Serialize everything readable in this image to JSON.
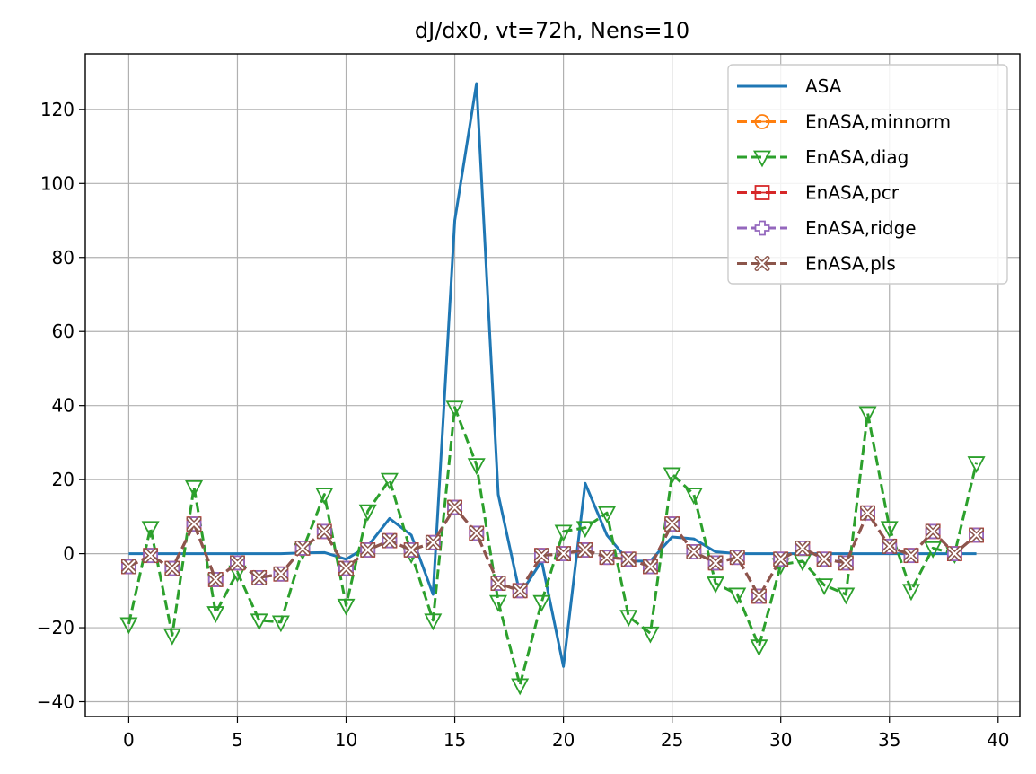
{
  "chart_data": {
    "type": "line",
    "title": "dJ/dx0, vt=72h, Nens=10",
    "xlabel": "",
    "ylabel": "",
    "xlim": [
      -2,
      41
    ],
    "ylim": [
      -44,
      135
    ],
    "xticks": [
      0,
      5,
      10,
      15,
      20,
      25,
      30,
      35,
      40
    ],
    "yticks": [
      -40,
      -20,
      0,
      20,
      40,
      60,
      80,
      100,
      120
    ],
    "xtick_labels": [
      "0",
      "5",
      "10",
      "15",
      "20",
      "25",
      "30",
      "35",
      "40"
    ],
    "ytick_labels": [
      "−40",
      "−20",
      "0",
      "20",
      "40",
      "60",
      "80",
      "100",
      "120"
    ],
    "grid": true,
    "legend_position": "top-right",
    "x": [
      0,
      1,
      2,
      3,
      4,
      5,
      6,
      7,
      8,
      9,
      10,
      11,
      12,
      13,
      14,
      15,
      16,
      17,
      18,
      19,
      20,
      21,
      22,
      23,
      24,
      25,
      26,
      27,
      28,
      29,
      30,
      31,
      32,
      33,
      34,
      35,
      36,
      37,
      38,
      39
    ],
    "series": [
      {
        "name": "ASA",
        "color": "#1f77b4",
        "linestyle": "solid",
        "marker": "none",
        "values": [
          0,
          0,
          0,
          0,
          0,
          0,
          0,
          0,
          0.2,
          0.3,
          -1.5,
          2,
          9.5,
          5,
          -11,
          90,
          127,
          16,
          -11,
          -2,
          -30.5,
          19,
          5,
          -2,
          -2,
          4.5,
          4,
          0.5,
          0,
          0,
          0,
          0,
          0,
          0,
          0,
          0,
          0,
          0,
          0,
          0
        ]
      },
      {
        "name": "EnASA,minnorm",
        "color": "#ff7f0e",
        "linestyle": "dashed",
        "marker": "circle-minus",
        "values": [
          -3.5,
          -0.5,
          -4,
          8,
          -7,
          -2.5,
          -6.5,
          -5.5,
          1.5,
          6,
          -4,
          1,
          3.5,
          1,
          3,
          12.5,
          5.5,
          -8,
          -10,
          -0.5,
          0,
          1,
          -1,
          -1.5,
          -3.5,
          8,
          0.5,
          -2.5,
          -1,
          -11.5,
          -1.5,
          1.5,
          -1.5,
          -2.5,
          11,
          2,
          -0.5,
          6,
          0,
          5
        ]
      },
      {
        "name": "EnASA,diag",
        "color": "#2ca02c",
        "linestyle": "dashed",
        "marker": "triangle-down",
        "values": [
          -19,
          7,
          -22,
          18,
          -16,
          -5,
          -18,
          -18.5,
          1,
          16,
          -14,
          11.5,
          20,
          0,
          -18,
          39.5,
          24,
          -13,
          -35.5,
          -13,
          6,
          7,
          11,
          -17,
          -21.5,
          21.5,
          16,
          -8,
          -11,
          -25,
          -3,
          -2,
          -8.5,
          -11,
          38,
          7,
          -10,
          1.5,
          0,
          24.5
        ]
      },
      {
        "name": "EnASA,pcr",
        "color": "#d62728",
        "linestyle": "dashed",
        "marker": "square-minus",
        "values": [
          -3.5,
          -0.5,
          -4,
          8,
          -7,
          -2.5,
          -6.5,
          -5.5,
          1.5,
          6,
          -4,
          1,
          3.5,
          1,
          3,
          12.5,
          5.5,
          -8,
          -10,
          -0.5,
          0,
          1,
          -1,
          -1.5,
          -3.5,
          8,
          0.5,
          -2.5,
          -1,
          -11.5,
          -1.5,
          1.5,
          -1.5,
          -2.5,
          11,
          2,
          -0.5,
          6,
          0,
          5
        ]
      },
      {
        "name": "EnASA,ridge",
        "color": "#9467bd",
        "linestyle": "dashed",
        "marker": "plus-filled",
        "values": [
          -3.5,
          -0.5,
          -4,
          8,
          -7,
          -2.5,
          -6.5,
          -5.5,
          1.5,
          6,
          -4,
          1,
          3.5,
          1,
          3,
          12.5,
          5.5,
          -8,
          -10,
          -0.5,
          0,
          1,
          -1,
          -1.5,
          -3.5,
          8,
          0.5,
          -2.5,
          -1,
          -11.5,
          -1.5,
          1.5,
          -1.5,
          -2.5,
          11,
          2,
          -0.5,
          6,
          0,
          5
        ]
      },
      {
        "name": "EnASA,pls",
        "color": "#8c564b",
        "linestyle": "dashed",
        "marker": "x-filled",
        "values": [
          -3.5,
          -0.5,
          -4,
          8,
          -7,
          -2.5,
          -6.5,
          -5.5,
          1.5,
          6,
          -4,
          1,
          3.5,
          1,
          3,
          12.5,
          5.5,
          -8,
          -10,
          -0.5,
          0,
          1,
          -1,
          -1.5,
          -3.5,
          8,
          0.5,
          -2.5,
          -1,
          -11.5,
          -1.5,
          1.5,
          -1.5,
          -2.5,
          11,
          2,
          -0.5,
          6,
          0,
          5
        ]
      }
    ]
  }
}
